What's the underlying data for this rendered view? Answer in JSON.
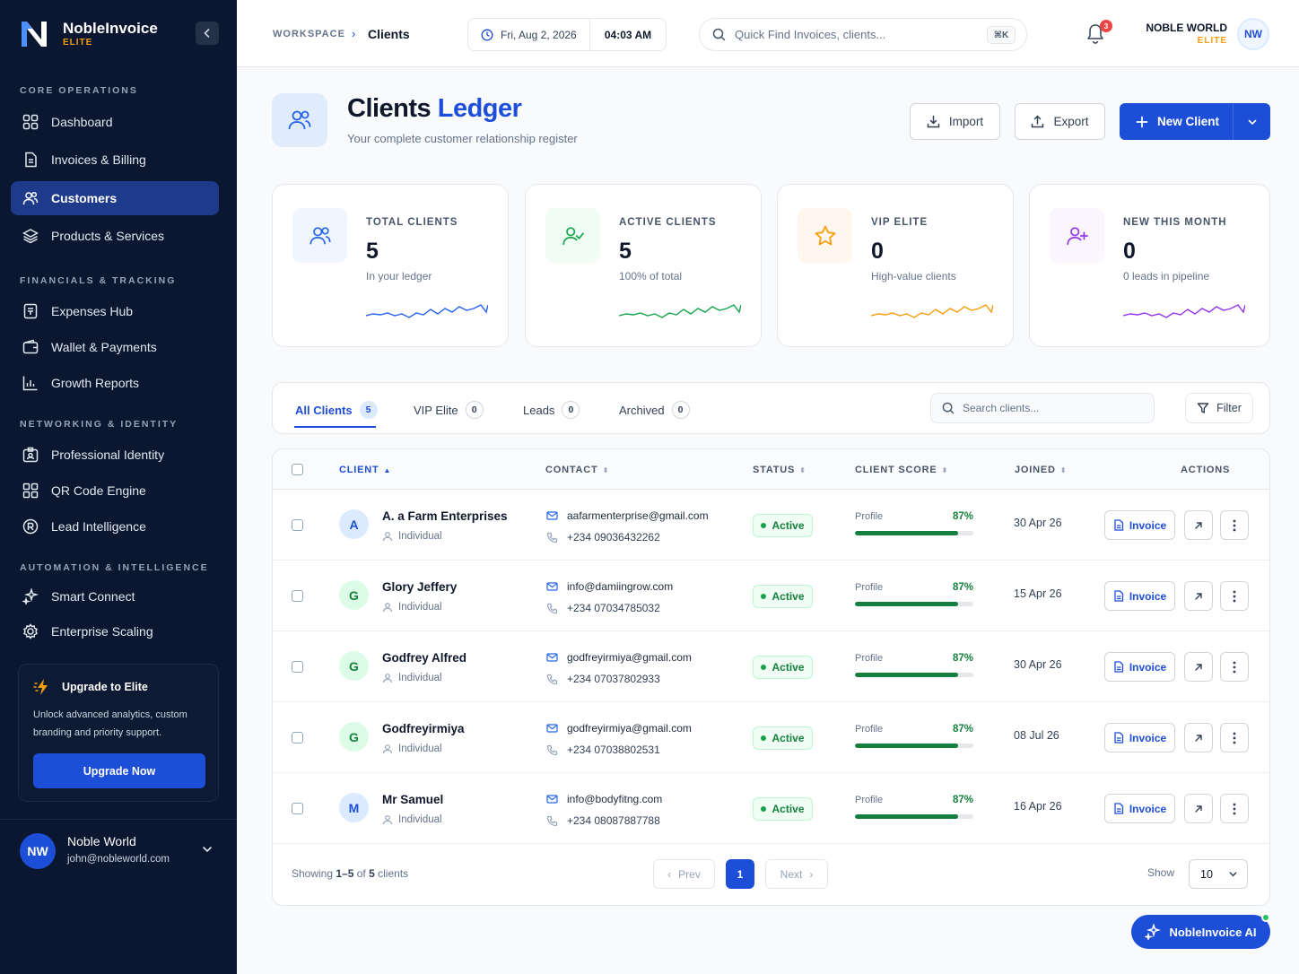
{
  "brand": {
    "name": "NobleInvoice",
    "tier": "ELITE"
  },
  "sidebar": {
    "sections": [
      {
        "title": "CORE OPERATIONS"
      },
      {
        "title": "FINANCIALS & TRACKING"
      },
      {
        "title": "NETWORKING & IDENTITY"
      },
      {
        "title": "AUTOMATION & INTELLIGENCE"
      }
    ],
    "items": [
      {
        "label": "Dashboard",
        "icon": "grid-icon"
      },
      {
        "label": "Invoices & Billing",
        "icon": "document-icon"
      },
      {
        "label": "Customers",
        "icon": "users-icon",
        "active": true
      },
      {
        "label": "Products & Services",
        "icon": "layers-icon"
      },
      {
        "label": "Expenses Hub",
        "icon": "receipt-icon"
      },
      {
        "label": "Wallet & Payments",
        "icon": "wallet-icon"
      },
      {
        "label": "Growth Reports",
        "icon": "bar-chart-icon"
      },
      {
        "label": "Professional Identity",
        "icon": "id-card-icon"
      },
      {
        "label": "QR Code Engine",
        "icon": "qr-icon"
      },
      {
        "label": "Lead Intelligence",
        "icon": "lead-icon"
      },
      {
        "label": "Smart Connect",
        "icon": "sparkle-icon"
      },
      {
        "label": "Enterprise Scaling",
        "icon": "settings-icon"
      }
    ],
    "upgrade": {
      "title": "Upgrade to Elite",
      "description": "Unlock advanced analytics, custom branding and priority support.",
      "button": "Upgrade Now"
    },
    "user": {
      "initials": "NW",
      "name": "Noble World",
      "email": "john@nobleworld.com"
    }
  },
  "topbar": {
    "breadcrumb_root": "WORKSPACE",
    "breadcrumb_current": "Clients",
    "date": "Fri, Aug 2, 2026",
    "time": "04:03 AM",
    "search_placeholder": "Quick Find Invoices, clients...",
    "search_shortcut": "⌘K",
    "notifications_count": "3",
    "org_name": "NOBLE WORLD",
    "org_tier": "ELITE",
    "org_initials": "NW"
  },
  "header": {
    "title_main": "Clients",
    "title_accent": "Ledger",
    "subtitle": "Your complete customer relationship register",
    "import_label": "Import",
    "export_label": "Export",
    "new_client_label": "New Client"
  },
  "stats": [
    {
      "label": "TOTAL CLIENTS",
      "value": "5",
      "sub": "In your ledger",
      "color": "#2563eb",
      "bg": "#eff6ff"
    },
    {
      "label": "ACTIVE CLIENTS",
      "value": "5",
      "sub": "100% of total",
      "color": "#16a34a",
      "bg": "#f0fdf4"
    },
    {
      "label": "VIP ELITE",
      "value": "0",
      "sub": "High-value clients",
      "color": "#f59e0b",
      "bg": "#fff7ed"
    },
    {
      "label": "NEW THIS MONTH",
      "value": "0",
      "sub": "0 leads in pipeline",
      "color": "#9333ea",
      "bg": "#faf5ff"
    }
  ],
  "tabs": [
    {
      "label": "All Clients",
      "count": "5",
      "active": true
    },
    {
      "label": "VIP Elite",
      "count": "0"
    },
    {
      "label": "Leads",
      "count": "0"
    },
    {
      "label": "Archived",
      "count": "0"
    }
  ],
  "table_search_placeholder": "Search clients...",
  "filter_label": "Filter",
  "table": {
    "columns": [
      "CLIENT",
      "CONTACT",
      "STATUS",
      "CLIENT SCORE",
      "JOINED",
      "ACTIONS"
    ],
    "rows": [
      {
        "initial": "A",
        "name": "A. a Farm Enterprises",
        "type": "Individual",
        "email": "aafarmenterprise@gmail.com",
        "phone": "+234 09036432262",
        "status": "Active",
        "score_label": "Profile",
        "score": "87%",
        "score_value": 87,
        "joined": "30 Apr 26",
        "avatar_bg": "#dbeafe",
        "avatar_fg": "#1d4ed8"
      },
      {
        "initial": "G",
        "name": "Glory Jeffery",
        "type": "Individual",
        "email": "info@damiingrow.com",
        "phone": "+234 07034785032",
        "status": "Active",
        "score_label": "Profile",
        "score": "87%",
        "score_value": 87,
        "joined": "15 Apr 26",
        "avatar_bg": "#dcfce7",
        "avatar_fg": "#15803d"
      },
      {
        "initial": "G",
        "name": "Godfrey Alfred",
        "type": "Individual",
        "email": "godfreyirmiya@gmail.com",
        "phone": "+234 07037802933",
        "status": "Active",
        "score_label": "Profile",
        "score": "87%",
        "score_value": 87,
        "joined": "30 Apr 26",
        "avatar_bg": "#dcfce7",
        "avatar_fg": "#15803d"
      },
      {
        "initial": "G",
        "name": "Godfreyirmiya",
        "type": "Individual",
        "email": "godfreyirmiya@gmail.com",
        "phone": "+234 07038802531",
        "status": "Active",
        "score_label": "Profile",
        "score": "87%",
        "score_value": 87,
        "joined": "08 Jul 26",
        "avatar_bg": "#dcfce7",
        "avatar_fg": "#15803d"
      },
      {
        "initial": "M",
        "name": "Mr Samuel",
        "type": "Individual",
        "email": "info@bodyfitng.com",
        "phone": "+234 08087887788",
        "status": "Active",
        "score_label": "Profile",
        "score": "87%",
        "score_value": 87,
        "joined": "16 Apr 26",
        "avatar_bg": "#dbeafe",
        "avatar_fg": "#1d4ed8"
      }
    ],
    "invoice_label": "Invoice"
  },
  "pagination": {
    "showing_prefix": "Showing",
    "range": "1–5",
    "of": "of",
    "total": "5",
    "suffix": "clients",
    "prev": "Prev",
    "current": "1",
    "next": "Next",
    "show_label": "Show",
    "page_size": "10"
  },
  "ai_button": "NobleInvoice AI",
  "colors": {
    "accent": "#1d4ed8",
    "sidebar": "#0b1730",
    "success": "#15803d",
    "warning": "#f59e0b"
  }
}
